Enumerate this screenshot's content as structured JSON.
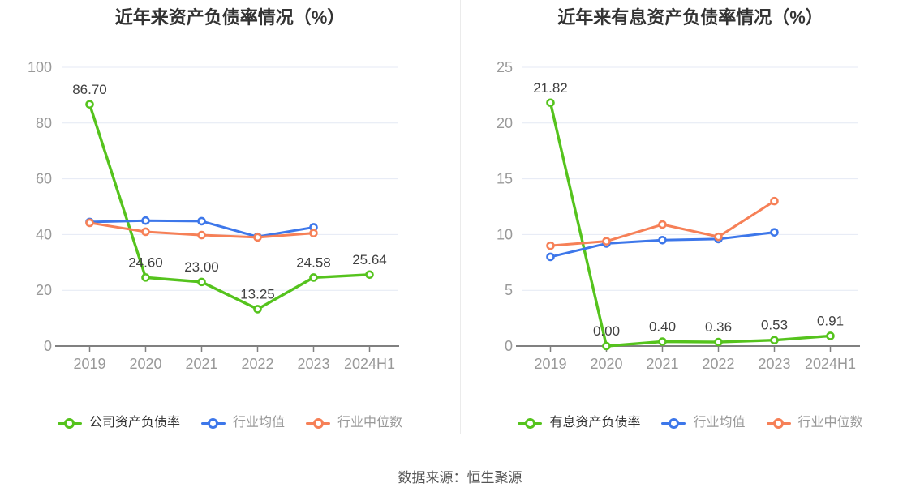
{
  "page": {
    "source_note": "数据来源：恒生聚源"
  },
  "colors": {
    "company": "#55c31d",
    "industry_mean": "#3d77ea",
    "industry_median": "#f68057",
    "grid_line": "#e4e9f4",
    "axis_line": "#808080",
    "tick_label": "#999999",
    "data_label": "#404040",
    "title": "#333333",
    "legend_company_label": "#333333",
    "legend_muted_label": "#999999",
    "divider": "#ebebeb",
    "background": "#ffffff"
  },
  "chart_data": [
    {
      "type": "line",
      "title": "近年来资产负债率情况（%）",
      "categories": [
        "2019",
        "2020",
        "2021",
        "2022",
        "2023",
        "2024H1"
      ],
      "ylim": [
        0,
        100
      ],
      "y_ticks": [
        0,
        20,
        40,
        60,
        80,
        100
      ],
      "grid": true,
      "legend_position": "bottom",
      "series": [
        {
          "key": "company",
          "name": "公司资产负债率",
          "values": [
            86.7,
            24.6,
            23.0,
            13.25,
            24.58,
            25.64
          ],
          "point_labels": [
            "86.70",
            "24.60",
            "23.00",
            "13.25",
            "24.58",
            "25.64"
          ]
        },
        {
          "key": "industry_mean",
          "name": "行业均值",
          "values": [
            44.5,
            45.0,
            44.8,
            39.2,
            42.6
          ],
          "point_labels": []
        },
        {
          "key": "industry_median",
          "name": "行业中位数",
          "values": [
            44.2,
            41.0,
            39.8,
            39.0,
            40.5
          ],
          "point_labels": []
        }
      ]
    },
    {
      "type": "line",
      "title": "近年来有息资产负债率情况（%）",
      "categories": [
        "2019",
        "2020",
        "2021",
        "2022",
        "2023",
        "2024H1"
      ],
      "ylim": [
        0,
        25
      ],
      "y_ticks": [
        0,
        5,
        10,
        15,
        20,
        25
      ],
      "grid": true,
      "legend_position": "bottom",
      "series": [
        {
          "key": "company",
          "name": "有息资产负债率",
          "values": [
            21.82,
            0.0,
            0.4,
            0.36,
            0.53,
            0.91
          ],
          "point_labels": [
            "21.82",
            "0.00",
            "0.40",
            "0.36",
            "0.53",
            "0.91"
          ]
        },
        {
          "key": "industry_mean",
          "name": "行业均值",
          "values": [
            8.0,
            9.2,
            9.5,
            9.6,
            10.2
          ],
          "point_labels": []
        },
        {
          "key": "industry_median",
          "name": "行业中位数",
          "values": [
            9.0,
            9.4,
            10.9,
            9.8,
            13.0
          ],
          "point_labels": []
        }
      ]
    }
  ]
}
